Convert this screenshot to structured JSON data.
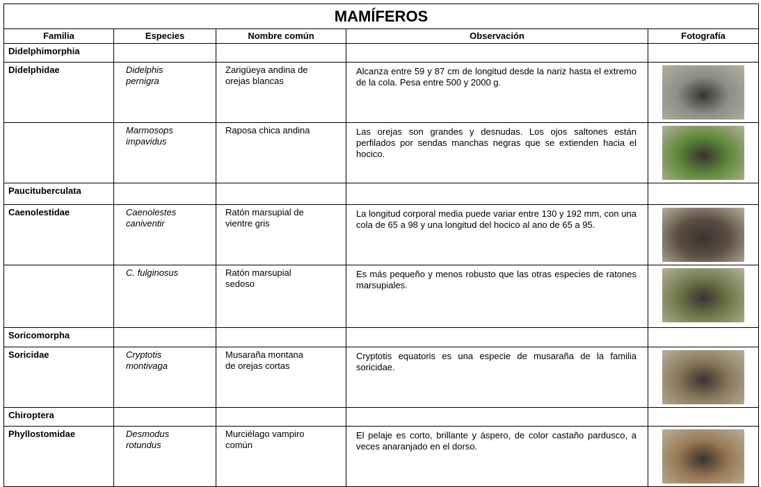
{
  "title": "MAMÍFEROS",
  "table": {
    "headers": [
      "Familia",
      "Especies",
      "Nombre común",
      "Observación",
      "Fotografía"
    ],
    "rows": [
      {
        "familia": "Didelphimorphia"
      },
      {
        "familia": "Didelphidae",
        "especie": [
          "Didelphis",
          "pernigra"
        ],
        "nombre": [
          "Zarigüeya andina de",
          "orejas blancas"
        ],
        "observacion": "Alcanza entre 59 y 87 cm de longitud desde la nariz hasta el extremo de la cola. Pesa entre 500 y 2000 g."
      },
      {
        "especie": [
          "Marmosops",
          "impavidus"
        ],
        "nombre": [
          "Raposa chica andina"
        ],
        "observacion": "Las orejas son grandes y desnudas. Los ojos saltones están perfilados por sendas manchas negras que se extienden hacia el hocico."
      },
      {
        "familia": "Paucituberculata"
      },
      {
        "familia": "Caenolestidae",
        "especie": [
          "Caenolestes",
          "caniventir"
        ],
        "nombre": [
          "Ratón marsupial de",
          "vientre gris"
        ],
        "observacion": "La longitud corporal media puede variar entre 130 y 192 mm, con una cola de 65 a 98 y una longitud del hocico al ano de 65 a 95."
      },
      {
        "especie": [
          "C. fulginosus"
        ],
        "nombre": [
          "Ratón marsupial",
          "sedoso"
        ],
        "observacion": "Es más pequeño y menos robusto que las otras especies de ratones marsupiales."
      },
      {
        "familia": "Soricomorpha"
      },
      {
        "familia": "Soricidae",
        "especie": [
          "Cryptotis",
          "montivaga"
        ],
        "nombre": [
          "Musaraña montana",
          "de orejas cortas"
        ],
        "observacion": "Cryptotis equatoris es una especie de musaraña de la familia soricidae."
      },
      {
        "familia": "Chiroptera"
      },
      {
        "familia": "Phyllostomidae",
        "especie": [
          "Desmodus",
          "rotundus"
        ],
        "nombre": [
          "Murciélago vampiro",
          "común"
        ],
        "observacion": "El pelaje es corto, brillante y áspero, de color castaño pardusco, a veces anaranjado en el dorso."
      }
    ]
  }
}
